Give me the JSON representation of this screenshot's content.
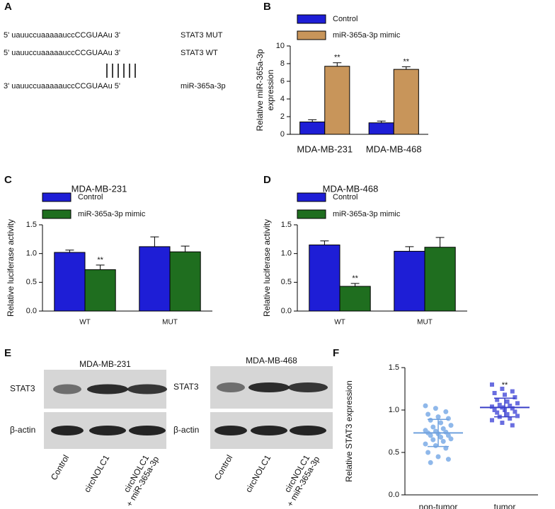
{
  "panels": [
    "A",
    "B",
    "C",
    "D",
    "E",
    "F"
  ],
  "panel_a": {
    "rows": [
      {
        "sequence": "5' uauuccuaaaaauccCCGUAAu 3'",
        "label": "STAT3 MUT"
      },
      {
        "sequence": "5' uauuccuaaaaauccCCGUAAu 3'",
        "label": "STAT3 WT"
      },
      {
        "sequence": "3' uauuccuaaaaauccCCGUAAu 5'",
        "label": "miR-365a-3p"
      }
    ]
  },
  "chart_data": [
    {
      "type": "bar",
      "y_label": [
        "Relative miR-365a-3p",
        "expression"
      ],
      "categories": [
        "MDA-MB-231",
        "MDA-MB-468"
      ],
      "series": [
        {
          "name": "Control",
          "color": "#1e1ed6",
          "values": [
            1.4,
            1.3
          ],
          "errors": [
            0.25,
            0.2
          ]
        },
        {
          "name": "miR-365a-3p mimic",
          "color": "#c8955a",
          "values": [
            7.7,
            7.35
          ],
          "errors": [
            0.4,
            0.3
          ],
          "annotations": [
            "**",
            "**"
          ]
        }
      ],
      "ylim": [
        0,
        10
      ],
      "yticks": [
        0,
        2,
        4,
        6,
        8,
        10
      ]
    },
    {
      "type": "bar",
      "title": "MDA-MB-231",
      "y_label": [
        "Relative luciferase activity"
      ],
      "categories": [
        "WT",
        "MUT"
      ],
      "series": [
        {
          "name": "Control",
          "color": "#1e1ed6",
          "values": [
            1.02,
            1.12
          ],
          "errors": [
            0.04,
            0.17
          ]
        },
        {
          "name": "miR-365a-3p mimic",
          "color": "#1f6e1f",
          "values": [
            0.72,
            1.03
          ],
          "errors": [
            0.08,
            0.1
          ],
          "annotations": [
            "**",
            null
          ]
        }
      ],
      "ylim": [
        0,
        1.5
      ],
      "yticks": [
        {
          "value": 0,
          "label": "0.0"
        },
        0.5,
        {
          "value": 1,
          "label": "1.0"
        },
        1.5
      ]
    },
    {
      "type": "bar",
      "title": "MDA-MB-468",
      "y_label": [
        "Relative luciferase activity"
      ],
      "categories": [
        "WT",
        "MUT"
      ],
      "series": [
        {
          "name": "Control",
          "color": "#1e1ed6",
          "values": [
            1.15,
            1.04
          ],
          "errors": [
            0.07,
            0.08
          ]
        },
        {
          "name": "miR-365a-3p mimic",
          "color": "#1f6e1f",
          "values": [
            0.43,
            1.11
          ],
          "errors": [
            0.05,
            0.17
          ],
          "annotations": [
            "**",
            null
          ]
        }
      ],
      "ylim": [
        0,
        1.5
      ],
      "yticks": [
        {
          "value": 0,
          "label": "0.0"
        },
        0.5,
        {
          "value": 1,
          "label": "1.0"
        },
        1.5
      ]
    },
    {
      "type": "scatter",
      "y_label": [
        "Relative STAT3 expression"
      ],
      "categories": [
        "non-tumor",
        "tumor"
      ],
      "series": [
        {
          "color": "#8fb8ea",
          "marker": "circle",
          "mean": 0.73,
          "sd": 0.16,
          "values": [
            1.05,
            1.02,
            0.98,
            0.95,
            0.92,
            0.9,
            0.88,
            0.85,
            0.82,
            0.8,
            0.78,
            0.76,
            0.75,
            0.74,
            0.73,
            0.72,
            0.7,
            0.7,
            0.68,
            0.66,
            0.65,
            0.63,
            0.6,
            0.58,
            0.55,
            0.5,
            0.45,
            0.42,
            0.38
          ]
        },
        {
          "color": "#6a6ee0",
          "marker": "square",
          "mean": 1.03,
          "sd": 0.11,
          "annotation": "**",
          "values": [
            1.3,
            1.25,
            1.22,
            1.2,
            1.18,
            1.15,
            1.12,
            1.1,
            1.08,
            1.06,
            1.05,
            1.04,
            1.03,
            1.02,
            1.0,
            1.0,
            0.98,
            0.97,
            0.95,
            0.93,
            0.92,
            0.9,
            0.88,
            0.85,
            0.82
          ]
        }
      ],
      "ylim": [
        0,
        1.5
      ],
      "yticks": [
        {
          "value": 0,
          "label": "0.0"
        },
        0.5,
        {
          "value": 1,
          "label": "1.0"
        },
        1.5
      ]
    }
  ],
  "panel_e": {
    "blots": [
      {
        "title": "MDA-MB-231",
        "rows": [
          "STAT3",
          "β-actin"
        ]
      },
      {
        "title": "MDA-MB-468",
        "rows": [
          "STAT3",
          "β-actin"
        ]
      }
    ],
    "lanes": [
      [
        "Control"
      ],
      [
        "circNOLC1"
      ],
      [
        "circNOLC1",
        "+ miR-365a-3p"
      ]
    ]
  }
}
